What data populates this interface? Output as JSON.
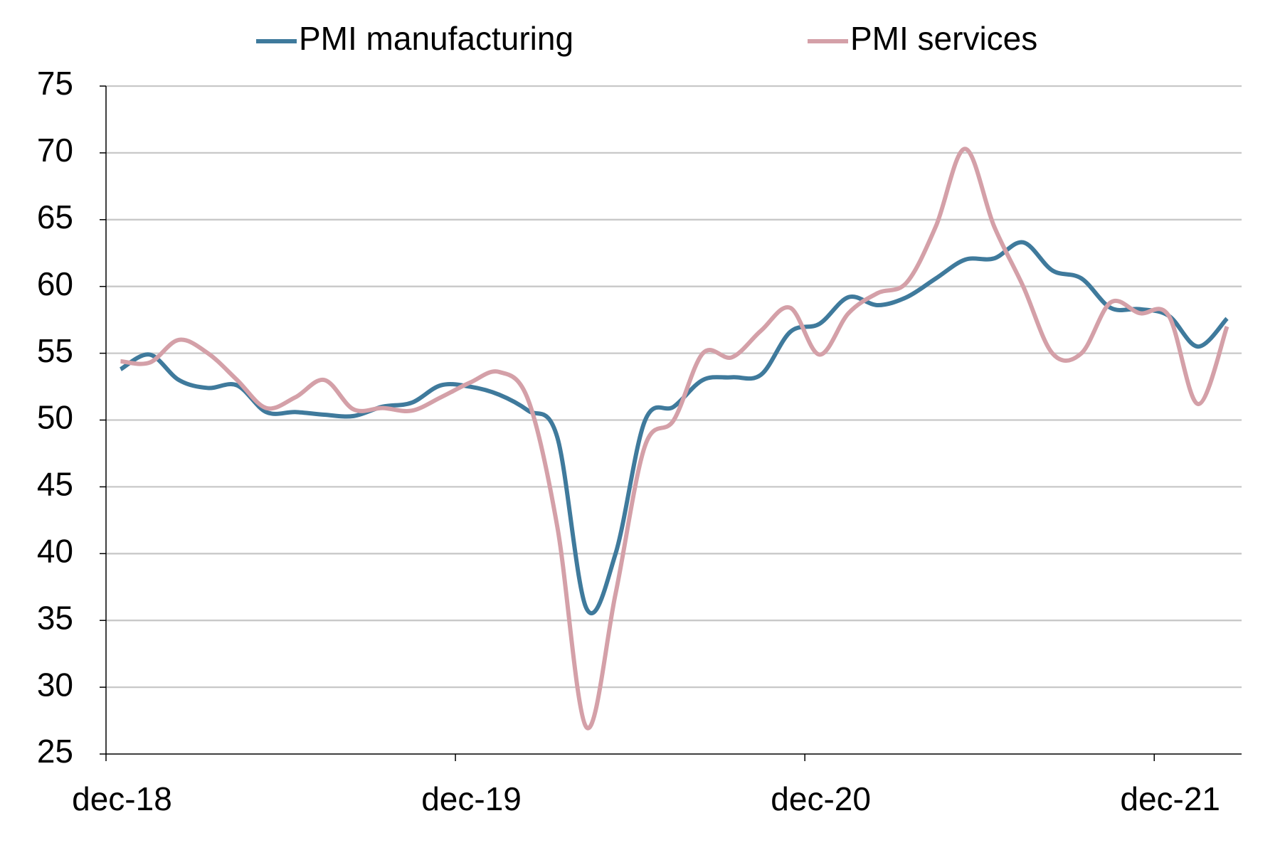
{
  "chart_data": {
    "type": "line",
    "categories": [
      "dec-18",
      null,
      null,
      null,
      null,
      null,
      null,
      null,
      null,
      null,
      null,
      null,
      "dec-19",
      null,
      null,
      null,
      null,
      null,
      null,
      null,
      null,
      null,
      null,
      null,
      "dec-20",
      null,
      null,
      null,
      null,
      null,
      null,
      null,
      null,
      null,
      null,
      null,
      "dec-21",
      null,
      null
    ],
    "series": [
      {
        "name": "PMI manufacturing",
        "color": "#3f7a9c",
        "values": [
          53.8,
          54.9,
          53.0,
          52.4,
          52.6,
          50.6,
          50.6,
          50.4,
          50.3,
          51.0,
          51.3,
          52.6,
          52.5,
          51.9,
          50.7,
          48.7,
          35.9,
          40.0,
          49.9,
          51.0,
          53.0,
          53.2,
          53.4,
          56.6,
          57.2,
          59.2,
          58.6,
          59.2,
          60.6,
          62.0,
          62.1,
          63.3,
          61.2,
          60.6,
          58.4,
          58.3,
          57.8,
          55.5,
          57.6
        ]
      },
      {
        "name": "PMI services",
        "color": "#d4a0a8",
        "values": [
          54.4,
          54.3,
          56.0,
          55.0,
          53.0,
          50.9,
          51.7,
          53.0,
          50.8,
          50.9,
          50.7,
          51.7,
          52.8,
          53.6,
          51.5,
          42.0,
          27.0,
          37.0,
          48.0,
          50.0,
          55.0,
          54.7,
          56.7,
          58.4,
          54.9,
          58.0,
          59.5,
          60.3,
          64.5,
          70.3,
          64.5,
          60.0,
          55.0,
          55.0,
          58.8,
          58.0,
          57.8,
          51.2,
          57.0
        ]
      }
    ],
    "ylim": [
      25,
      75
    ],
    "yticks": [
      25,
      30,
      35,
      40,
      45,
      50,
      55,
      60,
      65,
      70,
      75
    ],
    "grid": true,
    "legend": "top"
  }
}
